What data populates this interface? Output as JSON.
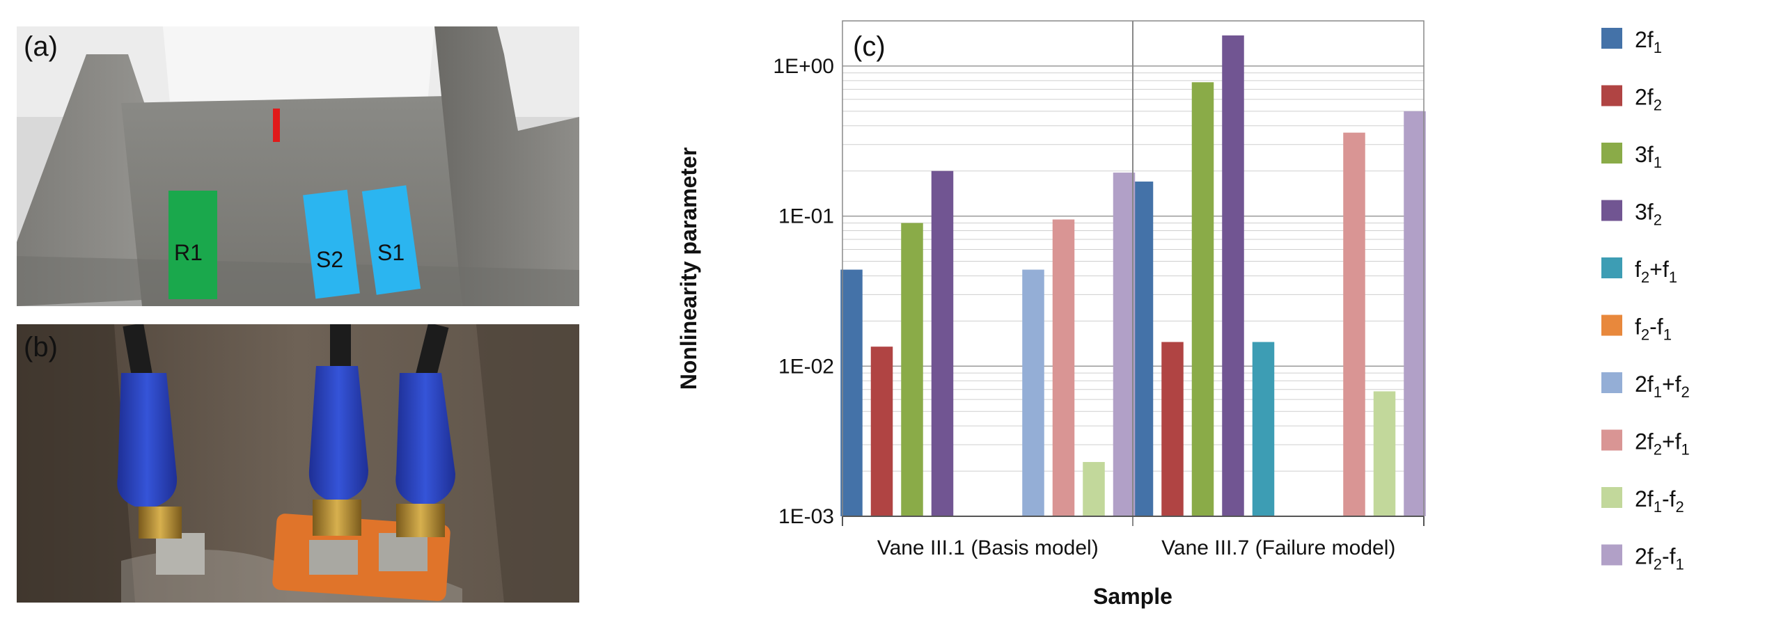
{
  "panels": {
    "a": {
      "label": "(a)",
      "sensors": {
        "r1": "R1",
        "s2": "S2",
        "s1": "S1"
      }
    },
    "b": {
      "label": "(b)"
    }
  },
  "colors": {
    "sensor_green": "#1aa84c",
    "sensor_blue": "#2bb5f0",
    "marker_red": "#e11a1a",
    "connector_blue": "#2b44c8"
  },
  "chart_data": {
    "type": "bar",
    "panel_label": "(c)",
    "xlabel": "Sample",
    "ylabel": "Nonlinearity parameter",
    "yscale": "log",
    "ylim": [
      0.001,
      2
    ],
    "yticks": [
      {
        "value": 0.001,
        "label": "1E-03"
      },
      {
        "value": 0.01,
        "label": "1E-02"
      },
      {
        "value": 0.1,
        "label": "1E-01"
      },
      {
        "value": 1,
        "label": "1E+00"
      }
    ],
    "categories": [
      "Vane III.1 (Basis model)",
      "Vane III.7 (Failure model)"
    ],
    "legend_position": "right",
    "series": [
      {
        "name": "2f1",
        "base": "2f",
        "sub": "1",
        "tail": "",
        "color": "#4472a8",
        "values": [
          0.044,
          0.17
        ]
      },
      {
        "name": "2f2",
        "base": "2f",
        "sub": "2",
        "tail": "",
        "color": "#b04443",
        "values": [
          0.0135,
          0.0145
        ]
      },
      {
        "name": "3f1",
        "base": "3f",
        "sub": "1",
        "tail": "",
        "color": "#8aab48",
        "values": [
          0.09,
          0.78
        ]
      },
      {
        "name": "3f2",
        "base": "3f",
        "sub": "2",
        "tail": "",
        "color": "#715592",
        "values": [
          0.2,
          1.6
        ]
      },
      {
        "name": "f2+f1",
        "base": "f",
        "sub": "2",
        "tail": "+f|1",
        "color": "#3d9db4",
        "values": [
          null,
          0.0145
        ]
      },
      {
        "name": "f2-f1",
        "base": "f",
        "sub": "2",
        "tail": "-f|1",
        "color": "#e8883c",
        "values": [
          null,
          null
        ]
      },
      {
        "name": "2f1+f2",
        "base": "2f",
        "sub": "1",
        "tail": "+f|2",
        "color": "#94aed6",
        "values": [
          0.044,
          null
        ]
      },
      {
        "name": "2f2+f1",
        "base": "2f",
        "sub": "2",
        "tail": "+f|1",
        "color": "#d99594",
        "values": [
          0.095,
          0.36
        ]
      },
      {
        "name": "2f1-f2",
        "base": "2f",
        "sub": "1",
        "tail": "-f|2",
        "color": "#c2d89b",
        "values": [
          0.0023,
          0.0068
        ]
      },
      {
        "name": "2f2-f1",
        "base": "2f",
        "sub": "2",
        "tail": "-f|1",
        "color": "#b1a0c7",
        "values": [
          0.195,
          0.5
        ]
      }
    ]
  }
}
